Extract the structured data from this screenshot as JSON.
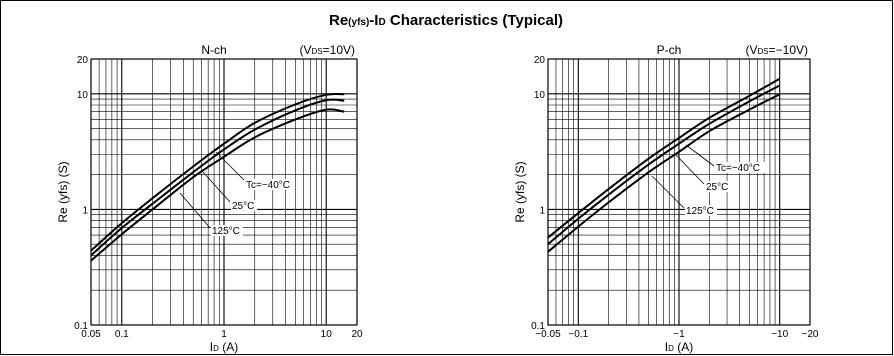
{
  "figure_title": {
    "main": "Re",
    "sub": "(yfs)",
    "mid": "-I",
    "sub2": "D",
    "tail": " Characteristics (Typical)"
  },
  "chart_data": [
    {
      "type": "line",
      "panel": "N-ch",
      "condition": {
        "pre": "(V",
        "sub": "DS",
        "post": "=10V)"
      },
      "xlabel": {
        "pre": "I",
        "sub": "D",
        "post": " (A)"
      },
      "ylabel": "Re (yfs) (S)",
      "x_scale": "log",
      "y_scale": "log",
      "xlim": [
        0.05,
        20
      ],
      "ylim": [
        0.1,
        20
      ],
      "x_ticks": [
        {
          "v": 0.05,
          "l": "0.05"
        },
        {
          "v": 0.1,
          "l": "0.1"
        },
        {
          "v": 1,
          "l": "1"
        },
        {
          "v": 10,
          "l": "10"
        },
        {
          "v": 20,
          "l": "20"
        }
      ],
      "y_ticks": [
        {
          "v": 0.1,
          "l": "0.1"
        },
        {
          "v": 1,
          "l": "1"
        },
        {
          "v": 10,
          "l": "10"
        },
        {
          "v": 20,
          "l": "20"
        }
      ],
      "grid": true,
      "series": [
        {
          "name": "Tc=−40°C",
          "x": [
            0.05,
            0.1,
            0.2,
            0.5,
            1,
            2,
            5,
            10,
            15
          ],
          "y": [
            0.44,
            0.76,
            1.25,
            2.35,
            3.7,
            5.6,
            8.1,
            9.8,
            9.9
          ]
        },
        {
          "name": "25°C",
          "x": [
            0.05,
            0.1,
            0.2,
            0.5,
            1,
            2,
            5,
            10,
            15
          ],
          "y": [
            0.4,
            0.69,
            1.12,
            2.1,
            3.3,
            4.9,
            7.2,
            8.8,
            8.7
          ]
        },
        {
          "name": "125°C",
          "x": [
            0.05,
            0.1,
            0.2,
            0.5,
            1,
            2,
            5,
            10,
            15
          ],
          "y": [
            0.36,
            0.61,
            1.0,
            1.9,
            2.85,
            4.2,
            6.0,
            7.3,
            7.0
          ]
        }
      ]
    },
    {
      "type": "line",
      "panel": "P-ch",
      "condition": {
        "pre": "(V",
        "sub": "DS",
        "post": "=−10V)"
      },
      "xlabel": {
        "pre": "I",
        "sub": "D",
        "post": " (A)"
      },
      "ylabel": "Re (yfs) (S)",
      "x_scale": "log",
      "y_scale": "log",
      "xlim": [
        -0.05,
        -20
      ],
      "ylim": [
        0.1,
        20
      ],
      "x_ticks": [
        {
          "v": -0.05,
          "l": "−0.05"
        },
        {
          "v": -0.1,
          "l": "−0.1"
        },
        {
          "v": -1,
          "l": "−1"
        },
        {
          "v": -10,
          "l": "−10"
        },
        {
          "v": -20,
          "l": "−20"
        }
      ],
      "y_ticks": [
        {
          "v": 0.1,
          "l": "0.1"
        },
        {
          "v": 1,
          "l": "1"
        },
        {
          "v": 10,
          "l": "10"
        },
        {
          "v": 20,
          "l": "20"
        }
      ],
      "grid": true,
      "series": [
        {
          "name": "Tc=−40°C",
          "x": [
            -0.05,
            -0.1,
            -0.2,
            -0.5,
            -1,
            -2,
            -5,
            -10
          ],
          "y": [
            0.57,
            0.93,
            1.5,
            2.75,
            4.15,
            6.2,
            9.6,
            13.5
          ]
        },
        {
          "name": "25°C",
          "x": [
            -0.05,
            -0.1,
            -0.2,
            -0.5,
            -1,
            -2,
            -5,
            -10
          ],
          "y": [
            0.5,
            0.83,
            1.34,
            2.45,
            3.7,
            5.5,
            8.6,
            11.8
          ]
        },
        {
          "name": "125°C",
          "x": [
            -0.05,
            -0.1,
            -0.2,
            -0.5,
            -1,
            -2,
            -5,
            -10
          ],
          "y": [
            0.43,
            0.71,
            1.15,
            2.1,
            3.15,
            4.75,
            7.3,
            9.9
          ]
        }
      ]
    }
  ]
}
